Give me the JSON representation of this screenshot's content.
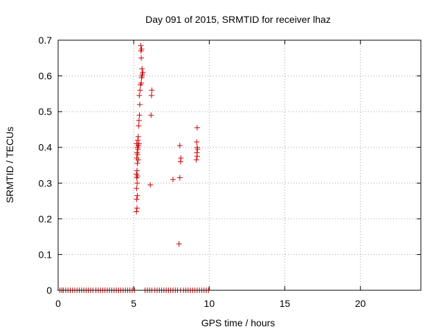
{
  "chart_data": {
    "type": "scatter",
    "title": "Day 091 of 2015, SRMTID for receiver lhaz",
    "xlabel": "GPS time / hours",
    "ylabel": "SRMTID / TECUs",
    "xlim": [
      0,
      24
    ],
    "ylim": [
      0,
      0.7
    ],
    "xticks": [
      0,
      5,
      10,
      15,
      20
    ],
    "yticks": [
      0,
      0.1,
      0.2,
      0.3,
      0.4,
      0.5,
      0.6,
      0.7
    ],
    "xtick_labels": [
      "0",
      "5",
      "10",
      "15",
      "20"
    ],
    "ytick_labels": [
      "0",
      "0.1",
      "0.2",
      "0.3",
      "0.4",
      "0.5",
      "0.6",
      "0.7"
    ],
    "grid": true,
    "marker": "+",
    "marker_color": "#cc0000",
    "series": [
      {
        "name": "SRMTID",
        "points": [
          [
            0.12,
            0
          ],
          [
            0.25,
            0
          ],
          [
            0.35,
            0
          ],
          [
            0.5,
            0
          ],
          [
            0.65,
            0
          ],
          [
            0.8,
            0
          ],
          [
            0.95,
            0
          ],
          [
            1.1,
            0
          ],
          [
            1.25,
            0
          ],
          [
            1.4,
            0
          ],
          [
            1.55,
            0
          ],
          [
            1.7,
            0
          ],
          [
            1.85,
            0
          ],
          [
            2.0,
            0
          ],
          [
            2.15,
            0
          ],
          [
            2.3,
            0
          ],
          [
            2.5,
            0
          ],
          [
            2.65,
            0
          ],
          [
            2.8,
            0
          ],
          [
            2.95,
            0
          ],
          [
            3.1,
            0
          ],
          [
            3.25,
            0
          ],
          [
            3.4,
            0
          ],
          [
            3.55,
            0
          ],
          [
            3.7,
            0
          ],
          [
            3.85,
            0
          ],
          [
            4.0,
            0
          ],
          [
            4.15,
            0
          ],
          [
            4.3,
            0
          ],
          [
            4.45,
            0
          ],
          [
            4.6,
            0
          ],
          [
            4.75,
            0
          ],
          [
            4.9,
            0
          ],
          [
            5.05,
            0
          ],
          [
            5.75,
            0
          ],
          [
            5.9,
            0
          ],
          [
            6.05,
            0
          ],
          [
            6.2,
            0
          ],
          [
            6.4,
            0
          ],
          [
            6.55,
            0
          ],
          [
            6.7,
            0
          ],
          [
            6.85,
            0
          ],
          [
            7.0,
            0
          ],
          [
            7.15,
            0
          ],
          [
            7.3,
            0
          ],
          [
            7.45,
            0
          ],
          [
            7.6,
            0
          ],
          [
            7.75,
            0
          ],
          [
            7.9,
            0
          ],
          [
            8.1,
            0
          ],
          [
            8.3,
            0
          ],
          [
            8.45,
            0
          ],
          [
            8.6,
            0
          ],
          [
            8.75,
            0
          ],
          [
            8.9,
            0
          ],
          [
            9.05,
            0
          ],
          [
            9.2,
            0
          ],
          [
            9.35,
            0
          ],
          [
            9.5,
            0
          ],
          [
            9.65,
            0
          ],
          [
            9.8,
            0
          ],
          [
            9.95,
            0
          ],
          [
            5.18,
            0.22
          ],
          [
            5.22,
            0.23
          ],
          [
            5.2,
            0.255
          ],
          [
            5.24,
            0.265
          ],
          [
            5.19,
            0.285
          ],
          [
            5.23,
            0.3
          ],
          [
            5.2,
            0.315
          ],
          [
            5.25,
            0.32
          ],
          [
            5.18,
            0.325
          ],
          [
            5.22,
            0.335
          ],
          [
            5.24,
            0.355
          ],
          [
            5.3,
            0.365
          ],
          [
            5.2,
            0.37
          ],
          [
            5.26,
            0.38
          ],
          [
            5.22,
            0.385
          ],
          [
            5.28,
            0.395
          ],
          [
            5.25,
            0.4
          ],
          [
            5.3,
            0.405
          ],
          [
            5.2,
            0.41
          ],
          [
            5.35,
            0.41
          ],
          [
            5.27,
            0.42
          ],
          [
            5.3,
            0.43
          ],
          [
            5.33,
            0.46
          ],
          [
            5.35,
            0.475
          ],
          [
            5.38,
            0.49
          ],
          [
            5.4,
            0.52
          ],
          [
            5.37,
            0.545
          ],
          [
            5.42,
            0.56
          ],
          [
            5.45,
            0.575
          ],
          [
            5.5,
            0.58
          ],
          [
            5.52,
            0.595
          ],
          [
            5.55,
            0.6
          ],
          [
            5.57,
            0.605
          ],
          [
            5.6,
            0.61
          ],
          [
            5.55,
            0.62
          ],
          [
            5.5,
            0.65
          ],
          [
            5.48,
            0.67
          ],
          [
            5.52,
            0.675
          ],
          [
            5.47,
            0.685
          ],
          [
            6.1,
            0.295
          ],
          [
            6.15,
            0.49
          ],
          [
            6.18,
            0.545
          ],
          [
            6.2,
            0.56
          ],
          [
            7.6,
            0.31
          ],
          [
            8.05,
            0.315
          ],
          [
            8.1,
            0.36
          ],
          [
            8.12,
            0.37
          ],
          [
            8.05,
            0.405
          ],
          [
            8.0,
            0.13
          ],
          [
            9.15,
            0.365
          ],
          [
            9.2,
            0.375
          ],
          [
            9.18,
            0.385
          ],
          [
            9.22,
            0.395
          ],
          [
            9.2,
            0.4
          ],
          [
            9.17,
            0.415
          ],
          [
            9.2,
            0.455
          ]
        ]
      }
    ]
  }
}
